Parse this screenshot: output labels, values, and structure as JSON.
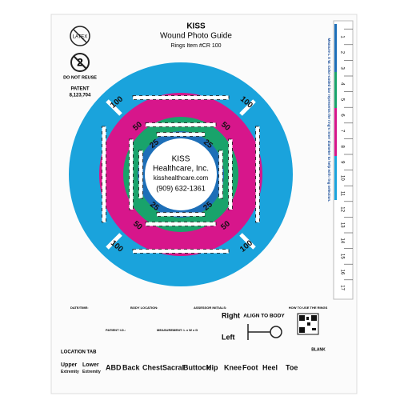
{
  "header": {
    "brand": "KISS",
    "title": "Wound Photo Guide",
    "item": "Rings Item #CR 100"
  },
  "left_info": {
    "latex": "LATEX",
    "reuse_icon": "2",
    "reuse": "DO NOT REUSE",
    "patent_label": "PATENT",
    "patent_number": "8,123,704"
  },
  "center": {
    "brand": "KISS",
    "company": "Healthcare, Inc.",
    "website": "kisshealthcare.com",
    "phone": "(909) 632-1361"
  },
  "ring_labels": [
    "100",
    "100",
    "100",
    "100",
    "50",
    "50",
    "50",
    "50",
    "25",
    "25",
    "25",
    "25"
  ],
  "ruler": {
    "note": "Measure L X W. Color-coded bar represents the ring's inner diameter to help with ring selection.",
    "numbers": [
      "1",
      "2",
      "3",
      "4",
      "5",
      "6",
      "7",
      "8",
      "9",
      "10",
      "11",
      "12",
      "13",
      "14",
      "15",
      "16",
      "17"
    ]
  },
  "form": {
    "date": "DATE/TIME:",
    "body_location": "BODY LOCATION:",
    "assessor": "ASSESSOR INITIALS:",
    "patient": "PATIENT I.D.:",
    "measurement": "MEASUREMENT: L x W x D",
    "right": "Right",
    "left": "Left",
    "align": "ALIGN TO BODY",
    "how_to": "HOW TO USE THE RINGS",
    "blank": "BLANK"
  },
  "location_tab": {
    "title": "LOCATION TAB",
    "tabs": [
      "Upper Extremity",
      "Lower Extremity",
      "ABD",
      "Back",
      "Chest",
      "Sacral",
      "Buttock",
      "Hip",
      "Knee",
      "Foot",
      "Heel",
      "Toe"
    ]
  }
}
